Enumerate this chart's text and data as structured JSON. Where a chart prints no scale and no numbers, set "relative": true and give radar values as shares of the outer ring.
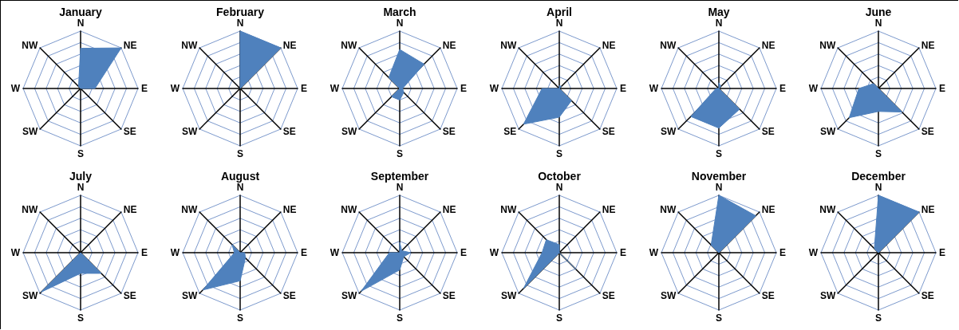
{
  "chart_data": [
    {
      "type": "radar",
      "title": "January",
      "categories": [
        "N",
        "NE",
        "E",
        "SE",
        "S",
        "SW",
        "W",
        "NW"
      ],
      "relative": true,
      "marker": "none",
      "series": [
        {
          "color": "#4f81bd",
          "values": [
            0.7,
            1,
            0.25,
            0,
            0,
            0,
            0,
            0.05
          ]
        }
      ]
    },
    {
      "type": "radar",
      "title": "February",
      "categories": [
        "N",
        "NE",
        "E",
        "SE",
        "S",
        "SW",
        "W",
        "NW"
      ],
      "relative": true,
      "marker": "none",
      "series": [
        {
          "color": "#4f81bd",
          "values": [
            1,
            1,
            0,
            0,
            0,
            0,
            0,
            0
          ]
        }
      ]
    },
    {
      "type": "radar",
      "title": "March",
      "categories": [
        "N",
        "NE",
        "E",
        "SE",
        "S",
        "SW",
        "W",
        "NW"
      ],
      "relative": true,
      "marker": "none",
      "series": [
        {
          "color": "#4f81bd",
          "values": [
            0.68,
            0.6,
            0.05,
            0.1,
            0.2,
            0.2,
            0,
            0.27
          ]
        }
      ]
    },
    {
      "type": "radar",
      "title": "April",
      "categories": [
        "N",
        "NE",
        "E",
        "SE",
        "S",
        "SE",
        "W",
        "NW"
      ],
      "relative": true,
      "marker": "none",
      "series": [
        {
          "color": "#4f81bd",
          "values": [
            0.05,
            0.05,
            0,
            0.3,
            0.5,
            0.88,
            0.3,
            0
          ]
        }
      ]
    },
    {
      "type": "radar",
      "title": "May",
      "categories": [
        "N",
        "NE",
        "E",
        "SE",
        "S",
        "SW",
        "W",
        "NW"
      ],
      "relative": true,
      "marker": "none",
      "series": [
        {
          "color": "#4f81bd",
          "values": [
            0.1,
            0.05,
            0,
            0.51,
            0.69,
            0.69,
            0.05,
            0
          ]
        }
      ]
    },
    {
      "type": "radar",
      "title": "June",
      "categories": [
        "N",
        "NE",
        "E",
        "SE",
        "S",
        "SW",
        "W",
        "NW"
      ],
      "relative": true,
      "marker": "none",
      "series": [
        {
          "color": "#4f81bd",
          "values": [
            0,
            0,
            0,
            0.58,
            0.4,
            0.72,
            0.34,
            0.12
          ]
        }
      ]
    },
    {
      "type": "radar",
      "title": "July",
      "categories": [
        "N",
        "NE",
        "E",
        "SE",
        "S",
        "SW",
        "W",
        "NW"
      ],
      "relative": true,
      "marker": "none",
      "series": [
        {
          "color": "#4f81bd",
          "values": [
            0,
            0,
            0,
            0.51,
            0.36,
            0.97,
            0,
            0
          ]
        }
      ]
    },
    {
      "type": "radar",
      "title": "August",
      "categories": [
        "N",
        "NE",
        "E",
        "SE",
        "S",
        "SW",
        "W",
        "NW"
      ],
      "relative": true,
      "marker": "none",
      "series": [
        {
          "color": "#4f81bd",
          "values": [
            0,
            0,
            0.08,
            0.13,
            0.49,
            0.92,
            0.1,
            0.2
          ]
        }
      ]
    },
    {
      "type": "radar",
      "title": "September",
      "categories": [
        "N",
        "NE",
        "E",
        "SE",
        "S",
        "SW",
        "W",
        "NW"
      ],
      "relative": true,
      "marker": "none",
      "series": [
        {
          "color": "#4f81bd",
          "values": [
            0.18,
            0.05,
            0.19,
            0.1,
            0.3,
            0.95,
            0.18,
            0
          ]
        }
      ]
    },
    {
      "type": "radar",
      "title": "October",
      "categories": [
        "N",
        "NE",
        "E",
        "SE",
        "S",
        "SW",
        "W",
        "NW"
      ],
      "relative": true,
      "marker": "none",
      "series": [
        {
          "color": "#4f81bd",
          "values": [
            0.14,
            0,
            0,
            0.41,
            0,
            0.88,
            0.3,
            0.32
          ]
        }
      ]
    },
    {
      "type": "radar",
      "title": "November",
      "categories": [
        "N",
        "NE",
        "E",
        "SE",
        "S",
        "SW",
        "W",
        "NW"
      ],
      "relative": true,
      "marker": "none",
      "series": [
        {
          "color": "#4f81bd",
          "values": [
            1,
            0.91,
            0,
            0,
            0,
            0,
            0,
            0.19
          ]
        }
      ]
    },
    {
      "type": "radar",
      "title": "December",
      "categories": [
        "N",
        "NE",
        "E",
        "SE",
        "S",
        "SW",
        "W",
        "NW"
      ],
      "relative": true,
      "marker": "none",
      "series": [
        {
          "color": "#4f81bd",
          "values": [
            1,
            1,
            0,
            0,
            0,
            0,
            0,
            0.1
          ]
        }
      ]
    }
  ]
}
